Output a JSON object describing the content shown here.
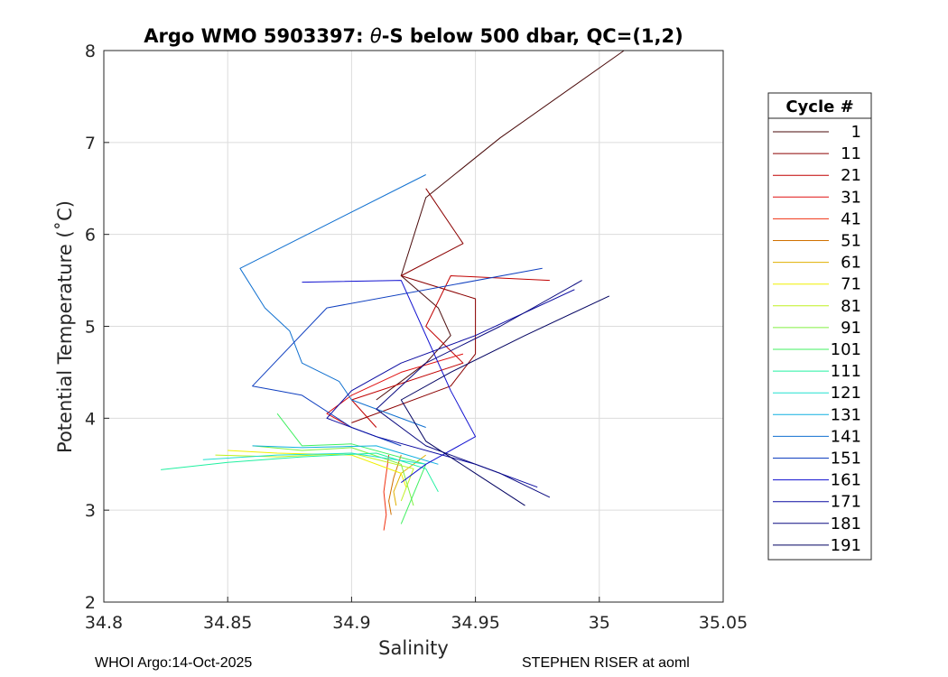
{
  "chart_data": {
    "type": "line",
    "title_prefix": "Argo WMO 5903397: ",
    "title_symbol": "θ",
    "title_suffix": "-S below 500 dbar,  QC=(1,2)",
    "xlabel": "Salinity",
    "ylabel": "Potential Temperature (˚C)",
    "xlim": [
      34.8,
      35.05
    ],
    "ylim": [
      2,
      8
    ],
    "xticks": [
      "34.8",
      "34.85",
      "34.9",
      "34.95",
      "35",
      "35.05"
    ],
    "yticks": [
      "2",
      "3",
      "4",
      "5",
      "6",
      "7",
      "8"
    ],
    "grid": true,
    "legend": {
      "title": "Cycle #",
      "placement": "right",
      "entries": [
        "1",
        "11",
        "21",
        "31",
        "41",
        "51",
        "61",
        "71",
        "81",
        "91",
        "101",
        "111",
        "121",
        "131",
        "141",
        "151",
        "161",
        "171",
        "181",
        "191"
      ],
      "colors": [
        "#4a0a0a",
        "#8b0000",
        "#c00000",
        "#e01010",
        "#f03010",
        "#d07000",
        "#e0b000",
        "#f0f000",
        "#c0f020",
        "#80f040",
        "#40f060",
        "#20f0a0",
        "#20e0d0",
        "#10b0e0",
        "#1070d0",
        "#1040c0",
        "#1010d0",
        "#0a0aa0",
        "#0a0a80",
        "#000060"
      ]
    },
    "series": [
      {
        "name": "1",
        "x": [
          35.01,
          34.96,
          34.93,
          34.92,
          34.935,
          34.94,
          34.93,
          34.91
        ],
        "y": [
          8.0,
          7.05,
          6.4,
          5.55,
          5.2,
          4.9,
          4.6,
          4.2
        ]
      },
      {
        "name": "11",
        "x": [
          34.93,
          34.945,
          34.92,
          34.95,
          34.95,
          34.94,
          34.9
        ],
        "y": [
          6.5,
          5.9,
          5.55,
          5.3,
          4.7,
          4.35,
          3.95
        ]
      },
      {
        "name": "21",
        "x": [
          34.98,
          34.94,
          34.93,
          34.945,
          34.9,
          34.91
        ],
        "y": [
          5.5,
          5.55,
          5.0,
          4.6,
          4.2,
          3.9
        ]
      },
      {
        "name": "31",
        "x": [
          34.945,
          34.92,
          34.9,
          34.89,
          34.9
        ],
        "y": [
          4.7,
          4.5,
          4.25,
          4.05,
          3.9
        ]
      },
      {
        "name": "41",
        "x": [
          34.915,
          34.913,
          34.914,
          34.913
        ],
        "y": [
          3.6,
          3.2,
          2.95,
          2.78
        ]
      },
      {
        "name": "51",
        "x": [
          34.92,
          34.917,
          34.915,
          34.916
        ],
        "y": [
          3.6,
          3.35,
          3.1,
          2.95
        ]
      },
      {
        "name": "61",
        "x": [
          34.93,
          34.92,
          34.917,
          34.918
        ],
        "y": [
          3.6,
          3.4,
          3.2,
          3.05
        ]
      },
      {
        "name": "71",
        "x": [
          34.85,
          34.87,
          34.9,
          34.92,
          34.922
        ],
        "y": [
          3.65,
          3.62,
          3.6,
          3.4,
          3.25
        ]
      },
      {
        "name": "81",
        "x": [
          34.845,
          34.87,
          34.9,
          34.925,
          34.92
        ],
        "y": [
          3.6,
          3.58,
          3.62,
          3.45,
          3.1
        ]
      },
      {
        "name": "91",
        "x": [
          34.86,
          34.88,
          34.9,
          34.92,
          34.925
        ],
        "y": [
          3.7,
          3.65,
          3.68,
          3.5,
          3.05
        ]
      },
      {
        "name": "101",
        "x": [
          34.87,
          34.88,
          34.9,
          34.93,
          34.92
        ],
        "y": [
          4.05,
          3.7,
          3.72,
          3.5,
          2.85
        ]
      },
      {
        "name": "111",
        "x": [
          34.823,
          34.85,
          34.88,
          34.91,
          34.93,
          34.935
        ],
        "y": [
          3.44,
          3.52,
          3.58,
          3.62,
          3.45,
          3.2
        ]
      },
      {
        "name": "121",
        "x": [
          34.84,
          34.87,
          34.9,
          34.93
        ],
        "y": [
          3.55,
          3.6,
          3.62,
          3.5
        ]
      },
      {
        "name": "131",
        "x": [
          34.86,
          34.88,
          34.91,
          34.935
        ],
        "y": [
          3.7,
          3.68,
          3.7,
          3.5
        ]
      },
      {
        "name": "141",
        "x": [
          34.93,
          34.855,
          34.865,
          34.875,
          34.88,
          34.895,
          34.9,
          34.93
        ],
        "y": [
          6.65,
          5.63,
          5.2,
          4.95,
          4.6,
          4.4,
          4.2,
          3.9
        ]
      },
      {
        "name": "151",
        "x": [
          34.977,
          34.89,
          34.86,
          34.87,
          34.88,
          34.9,
          34.92
        ],
        "y": [
          5.63,
          5.2,
          4.35,
          4.3,
          4.25,
          3.9,
          3.7
        ]
      },
      {
        "name": "161",
        "x": [
          34.88,
          34.92,
          34.94,
          34.95,
          34.93,
          34.92
        ],
        "y": [
          5.48,
          5.5,
          4.3,
          3.8,
          3.5,
          3.3
        ]
      },
      {
        "name": "171",
        "x": [
          34.99,
          34.95,
          34.92,
          34.9,
          34.89,
          34.91,
          34.95,
          34.975
        ],
        "y": [
          5.4,
          4.9,
          4.6,
          4.3,
          4.0,
          3.8,
          3.5,
          3.25
        ]
      },
      {
        "name": "181",
        "x": [
          34.993,
          34.96,
          34.93,
          34.91,
          34.93,
          34.96,
          34.98
        ],
        "y": [
          5.5,
          5.0,
          4.6,
          4.1,
          3.7,
          3.4,
          3.14
        ]
      },
      {
        "name": "191",
        "x": [
          35.004,
          34.97,
          34.94,
          34.92,
          34.93,
          34.95,
          34.97
        ],
        "y": [
          5.33,
          4.9,
          4.5,
          4.2,
          3.75,
          3.4,
          3.05
        ]
      }
    ]
  },
  "footer": {
    "left": "WHOI Argo:14-Oct-2025",
    "right": "STEPHEN RISER at aoml"
  }
}
